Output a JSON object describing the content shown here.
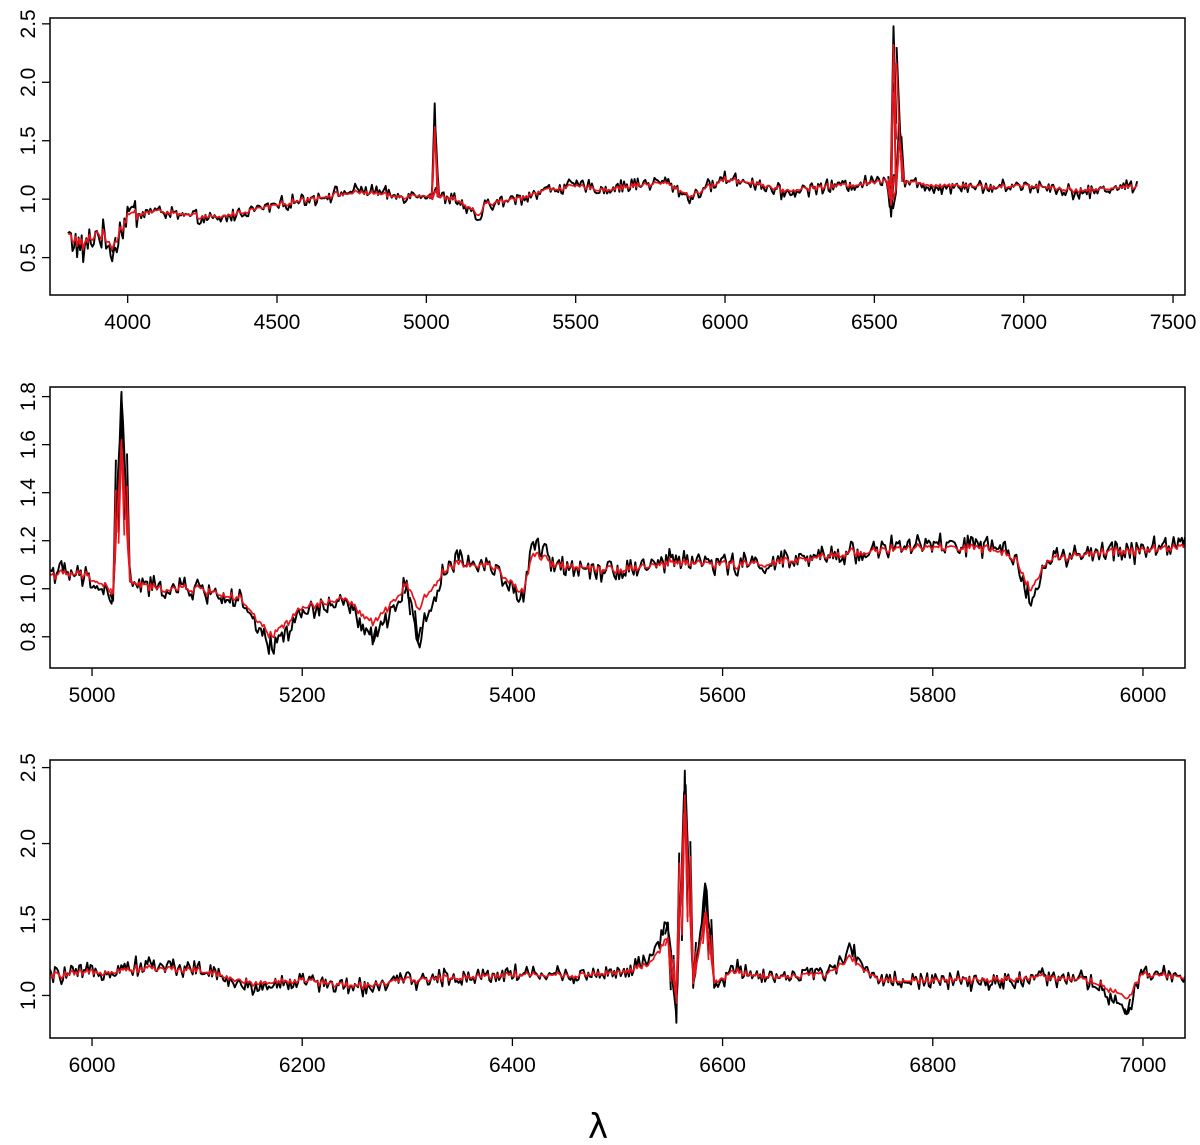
{
  "figure": {
    "xlabel": "λ"
  },
  "chart_data": [
    {
      "type": "line",
      "title": "",
      "xlabel": "",
      "ylabel": "",
      "xlim": [
        3740,
        7540
      ],
      "ylim": [
        0.18,
        2.55
      ],
      "xticks": [
        4000,
        4500,
        5000,
        5500,
        6000,
        6500,
        7000,
        7500
      ],
      "xtick_labels": [
        "4000",
        "4500",
        "5000",
        "5500",
        "6000",
        "6500",
        "7000",
        "7500"
      ],
      "yticks": [
        0.5,
        1.0,
        1.5,
        2.0,
        2.5
      ],
      "ytick_labels": [
        "0.5",
        "1.0",
        "1.5",
        "2.0",
        "2.5"
      ],
      "grid": false,
      "series": [
        {
          "color": "#000000",
          "x": [
            3800,
            3850,
            3900,
            3950,
            4000,
            4100,
            4200,
            4300,
            4400,
            4500,
            4600,
            4700,
            4800,
            4900,
            5000,
            5020,
            5028,
            5040,
            5100,
            5175,
            5200,
            5300,
            5400,
            5500,
            5600,
            5700,
            5800,
            5890,
            5900,
            6000,
            6100,
            6200,
            6300,
            6400,
            6500,
            6540,
            6556,
            6564,
            6572,
            6584,
            6600,
            6700,
            6800,
            6900,
            7000,
            7100,
            7200,
            7300,
            7380
          ],
          "y": [
            0.7,
            0.55,
            0.72,
            0.55,
            0.88,
            0.9,
            0.85,
            0.82,
            0.9,
            0.95,
            1.0,
            1.05,
            1.08,
            1.02,
            1.05,
            1.0,
            1.82,
            1.02,
            1.0,
            0.82,
            0.95,
            1.0,
            1.08,
            1.12,
            1.08,
            1.13,
            1.15,
            1.0,
            1.05,
            1.18,
            1.14,
            1.05,
            1.1,
            1.12,
            1.15,
            1.2,
            0.85,
            2.48,
            1.05,
            1.7,
            1.15,
            1.1,
            1.12,
            1.1,
            1.12,
            1.1,
            1.05,
            1.1,
            1.12
          ]
        },
        {
          "color": "#e8141b",
          "x": [
            3800,
            3850,
            3900,
            3950,
            4000,
            4100,
            4200,
            4300,
            4400,
            4500,
            4600,
            4700,
            4800,
            4900,
            5000,
            5020,
            5028,
            5040,
            5100,
            5175,
            5200,
            5300,
            5400,
            5500,
            5600,
            5700,
            5800,
            5890,
            5900,
            6000,
            6100,
            6200,
            6300,
            6400,
            6500,
            6540,
            6556,
            6564,
            6572,
            6584,
            6600,
            6700,
            6800,
            6900,
            7000,
            7100,
            7200,
            7300,
            7380
          ],
          "y": [
            0.7,
            0.6,
            0.72,
            0.6,
            0.86,
            0.9,
            0.86,
            0.84,
            0.9,
            0.95,
            1.0,
            1.04,
            1.06,
            1.02,
            1.04,
            1.0,
            1.62,
            1.02,
            1.0,
            0.86,
            0.96,
            1.0,
            1.08,
            1.11,
            1.08,
            1.12,
            1.14,
            1.02,
            1.05,
            1.17,
            1.14,
            1.07,
            1.1,
            1.12,
            1.14,
            1.18,
            0.95,
            2.32,
            1.08,
            1.55,
            1.15,
            1.12,
            1.12,
            1.1,
            1.12,
            1.1,
            1.07,
            1.1,
            1.11
          ]
        }
      ]
    },
    {
      "type": "line",
      "title": "",
      "xlabel": "",
      "ylabel": "",
      "xlim": [
        4960,
        6040
      ],
      "ylim": [
        0.67,
        1.84
      ],
      "xticks": [
        5000,
        5200,
        5400,
        5600,
        5800,
        6000
      ],
      "xtick_labels": [
        "5000",
        "5200",
        "5400",
        "5600",
        "5800",
        "6000"
      ],
      "yticks": [
        0.8,
        1.0,
        1.2,
        1.4,
        1.6,
        1.8
      ],
      "ytick_labels": [
        "0.8",
        "1.0",
        "1.2",
        "1.4",
        "1.6",
        "1.8"
      ],
      "grid": false,
      "series": [
        {
          "color": "#000000",
          "x": [
            4960,
            4990,
            5010,
            5020,
            5028,
            5036,
            5060,
            5100,
            5140,
            5170,
            5200,
            5240,
            5268,
            5300,
            5310,
            5340,
            5380,
            5410,
            5420,
            5440,
            5500,
            5560,
            5620,
            5680,
            5720,
            5780,
            5850,
            5880,
            5892,
            5910,
            5960,
            6000,
            6040
          ],
          "y": [
            1.08,
            1.05,
            1.0,
            0.95,
            1.82,
            1.03,
            1.0,
            1.0,
            0.95,
            0.75,
            0.9,
            0.95,
            0.78,
            1.02,
            0.78,
            1.12,
            1.1,
            0.95,
            1.2,
            1.1,
            1.08,
            1.12,
            1.1,
            1.12,
            1.15,
            1.18,
            1.18,
            1.12,
            0.96,
            1.12,
            1.15,
            1.16,
            1.2
          ]
        },
        {
          "color": "#e8141b",
          "x": [
            4960,
            4990,
            5010,
            5020,
            5028,
            5036,
            5060,
            5100,
            5140,
            5170,
            5200,
            5240,
            5268,
            5300,
            5310,
            5340,
            5380,
            5410,
            5420,
            5440,
            5500,
            5560,
            5620,
            5680,
            5720,
            5780,
            5850,
            5880,
            5892,
            5910,
            5960,
            6000,
            6040
          ],
          "y": [
            1.06,
            1.06,
            1.02,
            0.98,
            1.62,
            1.03,
            1.0,
            1.0,
            0.96,
            0.8,
            0.92,
            0.96,
            0.85,
            1.02,
            0.92,
            1.1,
            1.1,
            0.98,
            1.15,
            1.1,
            1.08,
            1.11,
            1.1,
            1.12,
            1.15,
            1.17,
            1.17,
            1.12,
            1.0,
            1.12,
            1.15,
            1.16,
            1.18
          ]
        }
      ]
    },
    {
      "type": "line",
      "title": "",
      "xlabel": "",
      "ylabel": "",
      "xlim": [
        5960,
        7040
      ],
      "ylim": [
        0.72,
        2.55
      ],
      "xticks": [
        6000,
        6200,
        6400,
        6600,
        6800,
        7000
      ],
      "xtick_labels": [
        "6000",
        "6200",
        "6400",
        "6600",
        "6800",
        "7000"
      ],
      "yticks": [
        1.0,
        1.5,
        2.0,
        2.5
      ],
      "ytick_labels": [
        "1.0",
        "1.5",
        "2.0",
        "2.5"
      ],
      "grid": false,
      "series": [
        {
          "color": "#000000",
          "x": [
            5960,
            6000,
            6050,
            6100,
            6150,
            6200,
            6250,
            6300,
            6350,
            6400,
            6450,
            6500,
            6530,
            6548,
            6556,
            6564,
            6572,
            6584,
            6592,
            6610,
            6650,
            6700,
            6720,
            6750,
            6800,
            6850,
            6900,
            6950,
            6985,
            7000,
            7040
          ],
          "y": [
            1.13,
            1.15,
            1.2,
            1.18,
            1.05,
            1.1,
            1.05,
            1.1,
            1.12,
            1.15,
            1.13,
            1.15,
            1.22,
            1.48,
            0.82,
            2.48,
            1.05,
            1.72,
            1.05,
            1.18,
            1.12,
            1.15,
            1.3,
            1.1,
            1.1,
            1.08,
            1.12,
            1.1,
            0.88,
            1.15,
            1.12
          ]
        },
        {
          "color": "#e8141b",
          "x": [
            5960,
            6000,
            6050,
            6100,
            6150,
            6200,
            6250,
            6300,
            6350,
            6400,
            6450,
            6500,
            6530,
            6548,
            6556,
            6564,
            6572,
            6584,
            6592,
            6610,
            6650,
            6700,
            6720,
            6750,
            6800,
            6850,
            6900,
            6950,
            6985,
            7000,
            7040
          ],
          "y": [
            1.13,
            1.15,
            1.18,
            1.17,
            1.08,
            1.1,
            1.06,
            1.1,
            1.12,
            1.14,
            1.13,
            1.15,
            1.2,
            1.38,
            0.95,
            2.32,
            1.08,
            1.55,
            1.08,
            1.16,
            1.12,
            1.14,
            1.25,
            1.1,
            1.1,
            1.1,
            1.12,
            1.1,
            0.98,
            1.14,
            1.12
          ]
        }
      ]
    }
  ]
}
